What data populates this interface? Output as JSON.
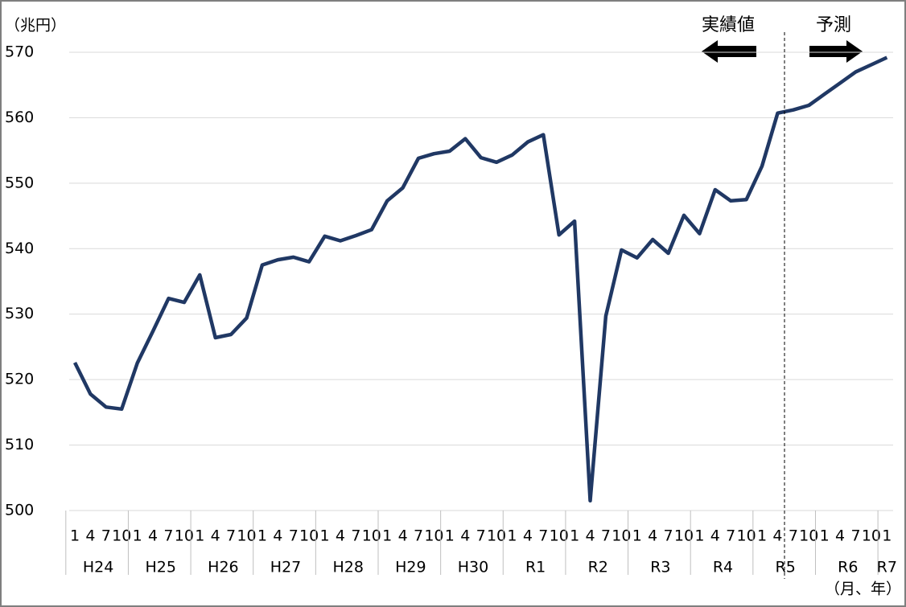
{
  "chart_data": {
    "type": "line",
    "y_unit": "（兆円）",
    "x_unit": "（月、年）",
    "annotations": [
      "実績値",
      "予測"
    ],
    "categories": [
      "1",
      "4",
      "7",
      "10",
      "1",
      "4",
      "7",
      "10",
      "1",
      "4",
      "7",
      "10",
      "1",
      "4",
      "7",
      "10",
      "1",
      "4",
      "7",
      "10",
      "1",
      "4",
      "7",
      "10",
      "1",
      "4",
      "7",
      "10",
      "1",
      "4",
      "7",
      "10",
      "1",
      "4",
      "7",
      "10",
      "1",
      "4",
      "7",
      "10",
      "1",
      "4",
      "7",
      "10",
      "1",
      "4",
      "7",
      "10",
      "1",
      "4",
      "7",
      "10",
      "1"
    ],
    "years": [
      "H24",
      "H25",
      "H26",
      "H27",
      "H28",
      "H29",
      "H30",
      "R1",
      "R2",
      "R3",
      "R4",
      "R5",
      "R6",
      "R7"
    ],
    "series": [
      {
        "color": "#203864",
        "values": [
          522.6,
          517.8,
          515.8,
          515.5,
          522.5,
          527.4,
          532.4,
          531.8,
          536.0,
          526.4,
          526.9,
          529.4,
          537.5,
          538.3,
          538.7,
          538.0,
          541.9,
          541.2,
          542.0,
          542.9,
          547.3,
          549.3,
          553.8,
          554.5,
          554.9,
          556.8,
          553.9,
          553.2,
          554.3,
          556.3,
          557.4,
          542.1,
          544.2,
          501.5,
          529.7,
          539.8,
          538.6,
          541.4,
          539.3,
          545.1,
          542.3,
          549.0,
          547.3,
          547.5,
          552.6,
          560.7,
          561.2,
          561.9,
          563.6,
          565.3,
          567.0,
          568.1,
          569.2
        ]
      }
    ],
    "ylim": [
      500,
      570
    ],
    "yticks": [
      500,
      510,
      520,
      530,
      540,
      550,
      560,
      570
    ],
    "grid": true
  }
}
